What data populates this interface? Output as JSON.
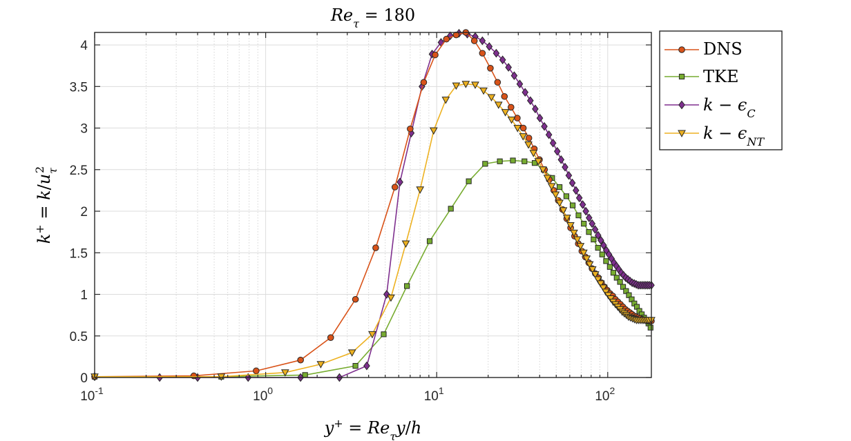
{
  "chart_data": {
    "type": "line",
    "title": "Re_τ = 180",
    "xlabel": "y⁺ = Re_τ y/h",
    "ylabel": "k⁺ = k/u_τ²",
    "xscale": "log",
    "xlim": [
      0.1,
      180
    ],
    "ylim": [
      0,
      4.15
    ],
    "x_ticks": [
      0.1,
      1,
      10,
      100
    ],
    "x_tick_labels": [
      {
        "base": "10",
        "exp": "-1"
      },
      {
        "base": "10",
        "exp": "0"
      },
      {
        "base": "10",
        "exp": "1"
      },
      {
        "base": "10",
        "exp": "2"
      }
    ],
    "y_ticks": [
      0,
      0.5,
      1,
      1.5,
      2,
      2.5,
      3,
      3.5,
      4
    ],
    "y_tick_labels": [
      "0",
      "0.5",
      "1",
      "1.5",
      "2",
      "2.5",
      "3",
      "3.5",
      "4"
    ],
    "grid": true,
    "legend_position": "outside-top-right",
    "series": [
      {
        "name": "DNS",
        "color": "#D95319",
        "marker": "circle",
        "x": [
          0.1,
          0.38,
          0.88,
          1.6,
          2.4,
          3.35,
          4.4,
          5.7,
          7.0,
          8.4,
          9.8,
          11.4,
          13.0,
          14.8,
          16.6,
          18.5,
          20.6,
          22.7,
          24.9,
          27.2,
          29.6,
          32.1,
          34.6,
          37.2,
          39.9,
          42.7,
          45.5,
          48.4,
          51.4,
          54.5,
          57.6,
          60.7,
          64.0,
          67.3,
          70.6,
          74.0,
          77.5,
          81.0,
          84.6,
          88.2,
          91.9,
          95.6,
          99.3,
          103.1,
          107.0,
          110.8,
          114.7,
          118.7,
          122.6,
          126.6,
          130.6,
          134.7,
          138.7,
          142.8,
          146.9,
          151.0,
          155.1,
          159.3,
          163.4,
          167.6,
          171.8,
          176.0,
          180.0
        ],
        "y": [
          0.01,
          0.02,
          0.08,
          0.21,
          0.48,
          0.94,
          1.56,
          2.29,
          2.99,
          3.55,
          3.88,
          4.07,
          4.12,
          4.15,
          4.05,
          3.9,
          3.72,
          3.55,
          3.38,
          3.25,
          3.12,
          3.0,
          2.88,
          2.75,
          2.62,
          2.5,
          2.38,
          2.25,
          2.13,
          2.02,
          1.91,
          1.8,
          1.7,
          1.61,
          1.52,
          1.45,
          1.38,
          1.31,
          1.25,
          1.2,
          1.14,
          1.09,
          1.05,
          1.01,
          0.98,
          0.94,
          0.91,
          0.88,
          0.85,
          0.82,
          0.8,
          0.78,
          0.76,
          0.74,
          0.73,
          0.72,
          0.71,
          0.7,
          0.69,
          0.69,
          0.68,
          0.68,
          0.68
        ]
      },
      {
        "name": "TKE",
        "color": "#77AC30",
        "marker": "square",
        "x": [
          0.1,
          0.55,
          1.7,
          3.35,
          4.9,
          6.7,
          9.1,
          12.1,
          15.4,
          19.2,
          23.4,
          27.9,
          32.6,
          37.4,
          42.3,
          47.3,
          52.3,
          57.3,
          62.4,
          67.5,
          72.5,
          77.6,
          82.7,
          87.7,
          92.8,
          97.8,
          102.9,
          107.9,
          112.9,
          118.0,
          123.0,
          128.0,
          133.0,
          138.1,
          143.1,
          148.1,
          153.1,
          158.1,
          163.1,
          168.1,
          173.1,
          178.0
        ],
        "y": [
          0.01,
          0.01,
          0.03,
          0.14,
          0.52,
          1.1,
          1.64,
          2.03,
          2.36,
          2.57,
          2.6,
          2.61,
          2.6,
          2.58,
          2.5,
          2.4,
          2.29,
          2.18,
          2.07,
          1.95,
          1.85,
          1.75,
          1.66,
          1.56,
          1.48,
          1.4,
          1.33,
          1.26,
          1.2,
          1.15,
          1.09,
          1.04,
          0.99,
          0.94,
          0.89,
          0.85,
          0.8,
          0.76,
          0.72,
          0.69,
          0.65,
          0.6
        ]
      },
      {
        "name": "k − ε_C",
        "color": "#7E2F8E",
        "marker": "diamond",
        "x": [
          0.1,
          0.24,
          0.4,
          0.79,
          1.6,
          2.7,
          3.9,
          5.1,
          6.1,
          7.1,
          8.2,
          9.4,
          10.6,
          12.0,
          13.5,
          15.1,
          16.8,
          18.5,
          20.3,
          22.3,
          24.3,
          26.3,
          28.4,
          30.6,
          32.9,
          35.3,
          37.7,
          40.1,
          42.6,
          45.3,
          47.9,
          50.7,
          53.4,
          56.3,
          59.2,
          62.1,
          65.2,
          68.2,
          71.4,
          74.5,
          77.8,
          81.1,
          84.4,
          87.8,
          91.2,
          94.6,
          98.1,
          101.6,
          105.2,
          108.8,
          112.5,
          116.2,
          119.9,
          123.7,
          127.5,
          131.3,
          135.2,
          139.0,
          143.0,
          146.9,
          150.9,
          154.9,
          158.9,
          163.0,
          167.0,
          171.1,
          175.2,
          180.0
        ],
        "y": [
          0.01,
          0.0,
          0.0,
          0.0,
          0.0,
          0.0,
          0.14,
          1.0,
          2.35,
          2.94,
          3.5,
          3.89,
          4.03,
          4.11,
          4.14,
          4.13,
          4.1,
          4.05,
          3.98,
          3.9,
          3.82,
          3.73,
          3.63,
          3.53,
          3.43,
          3.33,
          3.23,
          3.12,
          3.02,
          2.92,
          2.82,
          2.72,
          2.62,
          2.53,
          2.43,
          2.34,
          2.25,
          2.16,
          2.08,
          2.0,
          1.92,
          1.85,
          1.78,
          1.71,
          1.65,
          1.59,
          1.53,
          1.48,
          1.43,
          1.38,
          1.34,
          1.3,
          1.26,
          1.23,
          1.2,
          1.18,
          1.16,
          1.14,
          1.13,
          1.12,
          1.11,
          1.11,
          1.11,
          1.11,
          1.11,
          1.11,
          1.11,
          1.11
        ]
      },
      {
        "name": "k − ε_NT",
        "color": "#EDB120",
        "marker": "triangle-down",
        "x": [
          0.1,
          0.55,
          1.3,
          2.1,
          3.2,
          4.2,
          5.4,
          6.6,
          8.0,
          9.6,
          11.3,
          13.0,
          14.8,
          16.8,
          18.8,
          20.9,
          23.0,
          25.2,
          27.4,
          29.7,
          32.0,
          34.4,
          36.8,
          39.3,
          41.8,
          44.4,
          47.0,
          49.6,
          52.3,
          55.0,
          57.8,
          60.6,
          63.5,
          66.4,
          69.3,
          72.3,
          75.3,
          78.4,
          81.5,
          84.6,
          87.8,
          91.0,
          94.3,
          97.5,
          100.8,
          104.2,
          107.6,
          111.0,
          114.5,
          118.0,
          121.5,
          125.1,
          128.7,
          132.3,
          136.0,
          139.7,
          143.4,
          147.2,
          151.0,
          154.8,
          158.6,
          162.5,
          166.4,
          170.3,
          174.3,
          180.0
        ],
        "y": [
          0.01,
          0.01,
          0.06,
          0.16,
          0.3,
          0.52,
          0.96,
          1.61,
          2.26,
          2.97,
          3.34,
          3.51,
          3.53,
          3.52,
          3.45,
          3.37,
          3.28,
          3.19,
          3.1,
          3.0,
          2.9,
          2.8,
          2.7,
          2.6,
          2.5,
          2.4,
          2.3,
          2.2,
          2.1,
          2.01,
          1.92,
          1.83,
          1.74,
          1.66,
          1.58,
          1.5,
          1.43,
          1.36,
          1.3,
          1.24,
          1.18,
          1.13,
          1.08,
          1.03,
          0.99,
          0.95,
          0.91,
          0.88,
          0.85,
          0.82,
          0.79,
          0.77,
          0.75,
          0.73,
          0.72,
          0.71,
          0.7,
          0.69,
          0.69,
          0.69,
          0.69,
          0.69,
          0.69,
          0.69,
          0.69,
          0.69
        ]
      }
    ]
  }
}
